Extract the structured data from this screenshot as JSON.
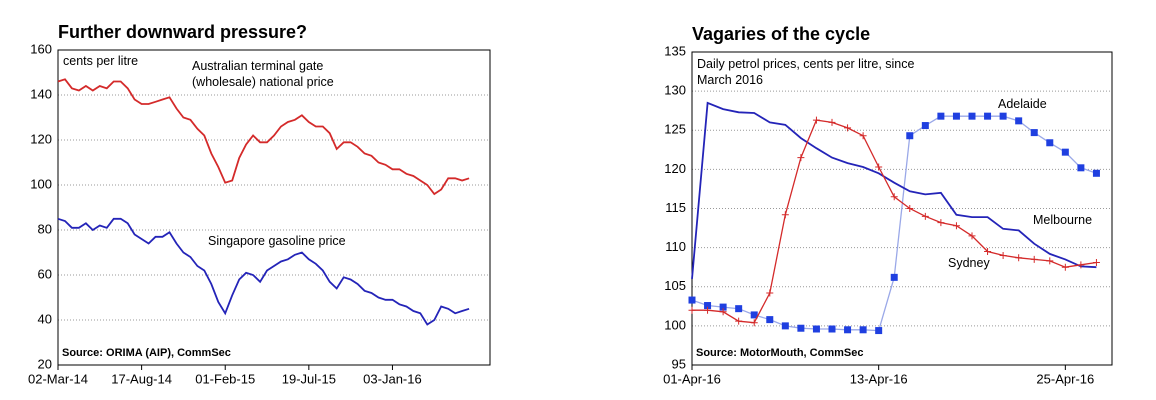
{
  "chart_data": [
    {
      "type": "line",
      "title": "Further downward pressure?",
      "subtitle": "cents per litre",
      "source": "Source: ORIMA (AIP), CommSec",
      "categories": [
        "02-Mar-14",
        null,
        null,
        null,
        null,
        null,
        null,
        null,
        null,
        null,
        null,
        null,
        "17-Aug-14",
        null,
        null,
        null,
        null,
        null,
        null,
        null,
        null,
        null,
        null,
        null,
        "01-Feb-15",
        null,
        null,
        null,
        null,
        null,
        null,
        null,
        null,
        null,
        null,
        null,
        "19-Jul-15",
        null,
        null,
        null,
        null,
        null,
        null,
        null,
        null,
        null,
        null,
        null,
        "03-Jan-16",
        null,
        null,
        null,
        null,
        null,
        null,
        null,
        null,
        null,
        null,
        null,
        null,
        null,
        null
      ],
      "series": [
        {
          "name": "Australian terminal gate (wholesale) national price",
          "color": "#d42a2a",
          "values": [
            146,
            147,
            143,
            142,
            144,
            142,
            144,
            143,
            146,
            146,
            143,
            138,
            136,
            136,
            137,
            138,
            139,
            134,
            130,
            129,
            125,
            122,
            114,
            108,
            101,
            102,
            112,
            118,
            122,
            119,
            119,
            122,
            126,
            128,
            129,
            131,
            128,
            126,
            126,
            123,
            116,
            119,
            119,
            117,
            114,
            113,
            110,
            109,
            107,
            107,
            105,
            104,
            102,
            100,
            96,
            98,
            103,
            103,
            102,
            103,
            null,
            null,
            null
          ]
        },
        {
          "name": "Singapore gasoline price",
          "color": "#2424b8",
          "values": [
            85,
            84,
            81,
            81,
            83,
            80,
            82,
            81,
            85,
            85,
            83,
            78,
            76,
            74,
            77,
            77,
            79,
            74,
            70,
            68,
            64,
            62,
            56,
            48,
            43,
            51,
            58,
            61,
            60,
            57,
            62,
            64,
            66,
            67,
            69,
            70,
            67,
            65,
            62,
            57,
            54,
            59,
            58,
            56,
            53,
            52,
            50,
            49,
            49,
            47,
            46,
            44,
            43,
            38,
            40,
            46,
            45,
            43,
            44,
            45,
            null,
            null,
            null
          ]
        }
      ],
      "ylim": [
        20,
        160
      ],
      "yticks": [
        20,
        40,
        60,
        80,
        100,
        120,
        140,
        160
      ],
      "grid": true
    },
    {
      "type": "line",
      "title": "Vagaries of the cycle",
      "subtitle": "Daily petrol prices, cents per litre, since March 2016",
      "source": "Source: MotorMouth, CommSec",
      "categories": [
        "01-Apr-16",
        null,
        null,
        null,
        null,
        null,
        null,
        null,
        null,
        null,
        null,
        null,
        "13-Apr-16",
        null,
        null,
        null,
        null,
        null,
        null,
        null,
        null,
        null,
        null,
        null,
        "25-Apr-16",
        null,
        null,
        null
      ],
      "series": [
        {
          "name": "Adelaide",
          "color": "#1f3fe0",
          "marker": "square",
          "line_color": "#9aa8e8",
          "values": [
            103.3,
            102.6,
            102.4,
            102.2,
            101.4,
            100.8,
            100,
            99.7,
            99.6,
            99.6,
            99.5,
            99.5,
            99.4,
            106.2,
            124.3,
            125.6,
            126.8,
            126.8,
            126.8,
            126.8,
            126.8,
            126.2,
            124.7,
            123.4,
            122.2,
            120.2,
            119.5,
            null
          ]
        },
        {
          "name": "Melbourne",
          "color": "#2424b8",
          "values": [
            106,
            128.5,
            127.7,
            127.3,
            127.2,
            126,
            125.7,
            124,
            122.7,
            121.5,
            120.8,
            120.3,
            119.5,
            118.3,
            117.2,
            116.8,
            117,
            114.2,
            113.9,
            113.9,
            112.4,
            112.2,
            110.5,
            109.2,
            108.5,
            107.6,
            107.5,
            null
          ]
        },
        {
          "name": "Sydney",
          "color": "#d42a2a",
          "marker": "plus",
          "values": [
            102,
            102,
            101.8,
            100.6,
            100.4,
            104.2,
            114.2,
            121.5,
            126.3,
            126,
            125.3,
            124.3,
            120.3,
            116.5,
            115,
            114,
            113.2,
            112.8,
            111.5,
            109.5,
            109,
            108.7,
            108.5,
            108.3,
            107.5,
            107.8,
            108.1,
            null
          ]
        }
      ],
      "ylim": [
        95,
        135
      ],
      "yticks": [
        95,
        100,
        105,
        110,
        115,
        120,
        125,
        130,
        135
      ],
      "grid": true
    }
  ]
}
